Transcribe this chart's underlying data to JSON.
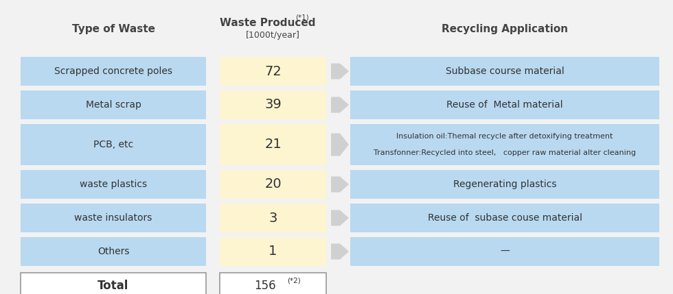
{
  "blue_bg": "#b8d9f0",
  "yellow_bg": "#fdf5d0",
  "white_bg": "#ffffff",
  "arrow_color": "#d0d0d0",
  "fig_bg": "#f2f2f2",
  "col1_header": "Type of Waste",
  "col2_header": "Waste Produced",
  "col2_header_sup": "(*1)",
  "col2_header_sub": "[1000t/year]",
  "col3_header": "Recycling Application",
  "rows": [
    {
      "type": "Scrapped concrete poles",
      "value": "72",
      "application": "Subbase course material",
      "app_line2": ""
    },
    {
      "type": "Metal scrap",
      "value": "39",
      "application": "Reuse of  Metal material",
      "app_line2": ""
    },
    {
      "type": "PCB, etc",
      "value": "21",
      "application": "Insulation oil:Themal recycle after detoxifying treatment",
      "app_line2": "Transfonner:Recycled into steel,   copper raw material alter cleaning"
    },
    {
      "type": "waste plastics",
      "value": "20",
      "application": "Regenerating plastics",
      "app_line2": ""
    },
    {
      "type": "waste insulators",
      "value": "3",
      "application": "Reuse of  subase couse material",
      "app_line2": ""
    },
    {
      "type": "Others",
      "value": "1",
      "application": "—",
      "app_line2": ""
    }
  ],
  "total_label": "Total",
  "total_value": "156",
  "total_sup": "(*2)"
}
